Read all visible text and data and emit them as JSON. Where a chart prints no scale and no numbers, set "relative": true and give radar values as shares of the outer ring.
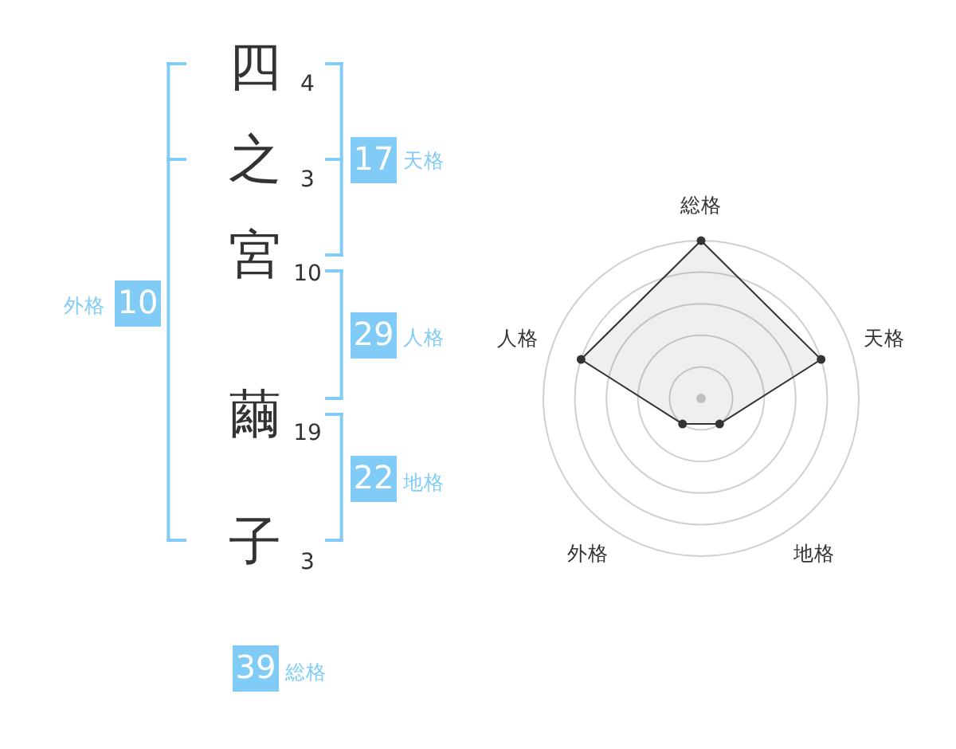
{
  "chart_data": [
    {
      "type": "other",
      "annotations": [
        "四",
        "4",
        "之",
        "3",
        "宮",
        "10",
        "繭",
        "19",
        "子",
        "3",
        "17",
        "天格",
        "29",
        "人格",
        "22",
        "地格",
        "外格",
        "10",
        "39",
        "総格"
      ]
    },
    {
      "type": "radar",
      "categories": [
        "総格",
        "天格",
        "地格",
        "外格",
        "人格"
      ],
      "series": [
        {
          "color": "#333333",
          "values": [
            1,
            0.8,
            0.2,
            0.2,
            0.8
          ]
        }
      ],
      "relative": true,
      "grid": true,
      "marker": "circle"
    }
  ]
}
